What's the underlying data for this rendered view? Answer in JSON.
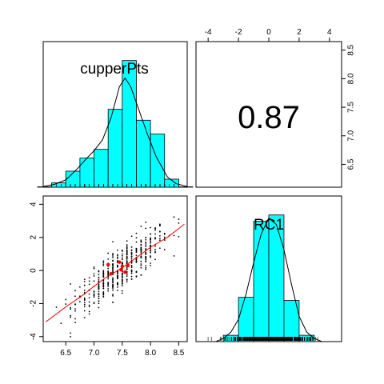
{
  "chart_data": {
    "type": "pairs",
    "variables": [
      "cupperPts",
      "RC1"
    ],
    "correlation": {
      "label": "0.87",
      "value": 0.87
    },
    "panels": [
      {
        "panel": "diag-1",
        "type": "bar",
        "variable": "cupperPts",
        "label": "cupperPts",
        "bars": [
          {
            "x0": 6.0,
            "x1": 6.25,
            "density": 0.005
          },
          {
            "x0": 6.25,
            "x1": 6.5,
            "density": 0.06
          },
          {
            "x0": 6.5,
            "x1": 6.75,
            "density": 0.22
          },
          {
            "x0": 6.75,
            "x1": 7.0,
            "density": 0.4
          },
          {
            "x0": 7.0,
            "x1": 7.25,
            "density": 0.52
          },
          {
            "x0": 7.25,
            "x1": 7.5,
            "density": 1.07
          },
          {
            "x0": 7.5,
            "x1": 7.75,
            "density": 1.74
          },
          {
            "x0": 7.75,
            "x1": 8.0,
            "density": 0.92
          },
          {
            "x0": 8.0,
            "x1": 8.25,
            "density": 0.73
          },
          {
            "x0": 8.25,
            "x1": 8.5,
            "density": 0.11
          },
          {
            "x0": 8.5,
            "x1": 8.75,
            "density": 0.005
          }
        ],
        "density_curve": [
          [
            6.1,
            0.01
          ],
          [
            6.3,
            0.04
          ],
          [
            6.5,
            0.1
          ],
          [
            6.7,
            0.25
          ],
          [
            6.85,
            0.38
          ],
          [
            7.0,
            0.5
          ],
          [
            7.15,
            0.65
          ],
          [
            7.3,
            0.95
          ],
          [
            7.45,
            1.38
          ],
          [
            7.55,
            1.5
          ],
          [
            7.65,
            1.38
          ],
          [
            7.8,
            1.05
          ],
          [
            7.95,
            0.72
          ],
          [
            8.1,
            0.42
          ],
          [
            8.3,
            0.14
          ],
          [
            8.45,
            0.05
          ],
          [
            8.65,
            0.01
          ]
        ],
        "ylim": [
          0,
          2.0
        ]
      },
      {
        "panel": "diag-2",
        "type": "bar",
        "variable": "RC1",
        "label": "RC1",
        "bars": [
          {
            "x0": -3,
            "x1": -2,
            "density": 0.02
          },
          {
            "x0": -2,
            "x1": -1,
            "density": 0.14
          },
          {
            "x0": -1,
            "x1": 0,
            "density": 0.38
          },
          {
            "x0": 0,
            "x1": 1,
            "density": 0.4
          },
          {
            "x0": 1,
            "x1": 2,
            "density": 0.13
          },
          {
            "x0": 2,
            "x1": 3,
            "density": 0.02
          }
        ],
        "density_curve": [
          [
            -3.5,
            0.0
          ],
          [
            -3.0,
            0.01
          ],
          [
            -2.5,
            0.03
          ],
          [
            -2.0,
            0.07
          ],
          [
            -1.5,
            0.15
          ],
          [
            -1.0,
            0.25
          ],
          [
            -0.5,
            0.34
          ],
          [
            0.0,
            0.39
          ],
          [
            0.5,
            0.37
          ],
          [
            1.0,
            0.29
          ],
          [
            1.5,
            0.18
          ],
          [
            2.0,
            0.08
          ],
          [
            2.5,
            0.03
          ],
          [
            3.0,
            0.01
          ],
          [
            3.5,
            0.0
          ]
        ],
        "ylim": [
          0,
          0.46
        ]
      },
      {
        "panel": "scatter",
        "type": "scatter",
        "x_variable": "cupperPts",
        "y_variable": "RC1",
        "xlim": [
          6.1,
          8.65
        ],
        "ylim": [
          -4.3,
          4.5
        ],
        "xticks": [
          "6.5",
          "7.0",
          "7.5",
          "8.0",
          "8.5"
        ],
        "yticks": [
          "-4",
          "-2",
          "0",
          "2",
          "4"
        ],
        "points_model": {
          "n": 520,
          "slope": 2.55,
          "intercept_at": 7.45,
          "noise_sd": 0.62
        },
        "highlight_points": [
          [
            7.25,
            0.35
          ],
          [
            7.3,
            -0.2
          ],
          [
            7.48,
            0.05
          ],
          [
            7.5,
            0.25
          ],
          [
            7.55,
            -0.1
          ],
          [
            7.6,
            0.3
          ],
          [
            7.45,
            0.5
          ]
        ],
        "loess": [
          [
            6.15,
            -3.1
          ],
          [
            6.5,
            -2.2
          ],
          [
            6.8,
            -1.5
          ],
          [
            7.0,
            -0.95
          ],
          [
            7.2,
            -0.45
          ],
          [
            7.4,
            -0.05
          ],
          [
            7.6,
            0.4
          ],
          [
            7.8,
            0.9
          ],
          [
            8.0,
            1.4
          ],
          [
            8.3,
            2.0
          ],
          [
            8.6,
            2.8
          ]
        ]
      }
    ],
    "top_axis": {
      "for": "RC1",
      "range": [
        -4.8,
        4.8
      ],
      "ticks": [
        "-4",
        "-2",
        "0",
        "2",
        "4"
      ]
    },
    "right_axis": {
      "for": "cupperPts",
      "range": [
        6.1,
        8.65
      ],
      "ticks": [
        "6.5",
        "7.0",
        "7.5",
        "8.0",
        "8.5"
      ]
    },
    "colors": {
      "bar_fill": "#00ffff",
      "bar_stroke": "#000000",
      "loess": "#ff0000",
      "highlight": "#ff0000",
      "points": "#000000"
    }
  }
}
